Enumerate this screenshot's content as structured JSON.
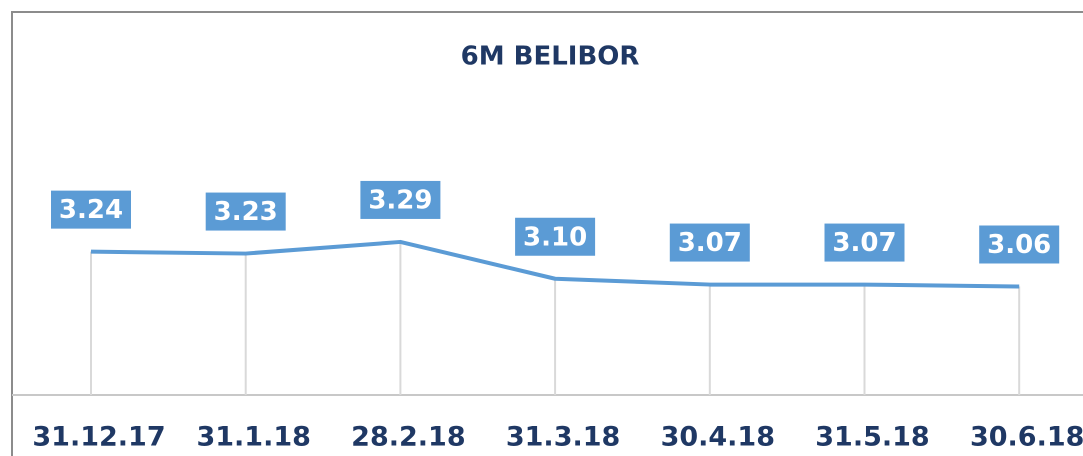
{
  "chart_data": {
    "type": "line",
    "title": "6M BELIBOR",
    "categories": [
      "31.12.17",
      "31.1.18",
      "28.2.18",
      "31.3.18",
      "30.4.18",
      "31.5.18",
      "30.6.18"
    ],
    "values": [
      3.24,
      3.23,
      3.29,
      3.1,
      3.07,
      3.07,
      3.06
    ],
    "value_labels": [
      "3.24",
      "3.23",
      "3.29",
      "3.10",
      "3.07",
      "3.07",
      "3.06"
    ],
    "color": "#5b9bd5",
    "ylim": [
      2.5,
      4.1
    ]
  }
}
